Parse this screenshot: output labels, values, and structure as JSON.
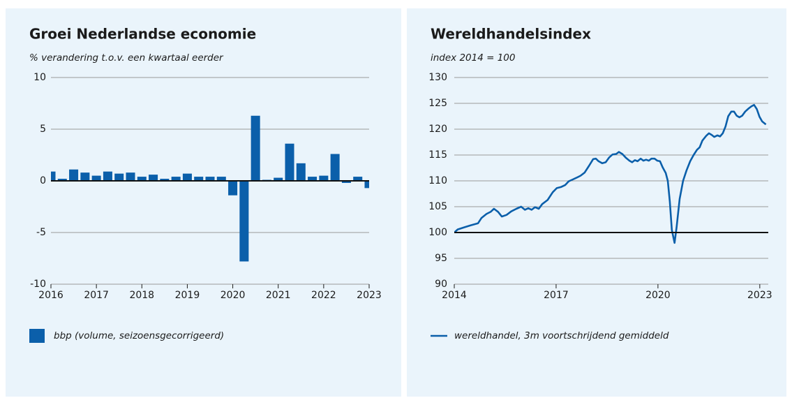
{
  "chart_data": [
    {
      "type": "bar",
      "title": "Groei Nederlandse economie",
      "subtitle": "% verandering t.o.v. een kwartaal eerder",
      "x": [
        2016,
        2016.25,
        2016.5,
        2016.75,
        2017,
        2017.25,
        2017.5,
        2017.75,
        2018,
        2018.25,
        2018.5,
        2018.75,
        2019,
        2019.25,
        2019.5,
        2019.75,
        2020,
        2020.25,
        2020.5,
        2020.75,
        2021,
        2021.25,
        2021.5,
        2021.75,
        2022,
        2022.25,
        2022.5,
        2022.75,
        2023
      ],
      "series": [
        {
          "name": "bbp (volume, seizoensgecorrigeerd)",
          "color": "#0b5faa",
          "values": [
            0.9,
            0.2,
            1.1,
            0.8,
            0.5,
            0.9,
            0.7,
            0.8,
            0.4,
            0.6,
            0.2,
            0.4,
            0.7,
            0.4,
            0.4,
            0.4,
            -1.4,
            -7.8,
            6.3,
            0.1,
            0.3,
            3.6,
            1.7,
            0.4,
            0.5,
            2.6,
            -0.2,
            0.4,
            -0.7
          ]
        }
      ],
      "xlim": [
        2016,
        2023
      ],
      "xticks": [
        2016,
        2017,
        2018,
        2019,
        2020,
        2021,
        2022,
        2023
      ],
      "ylim": [
        -10,
        10
      ],
      "yticks": [
        -10,
        -5,
        0,
        5,
        10
      ],
      "grid": true,
      "hline": 0
    },
    {
      "type": "line",
      "title": "Wereldhandelsindex",
      "subtitle": "index 2014 = 100",
      "x": [
        2014.0,
        2014.1,
        2014.29,
        2014.49,
        2014.7,
        2014.8,
        2014.95,
        2015.07,
        2015.17,
        2015.29,
        2015.4,
        2015.54,
        2015.68,
        2015.83,
        2015.97,
        2016.08,
        2016.18,
        2016.28,
        2016.38,
        2016.49,
        2016.59,
        2016.75,
        2016.9,
        2017.02,
        2017.14,
        2017.27,
        2017.37,
        2017.47,
        2017.6,
        2017.72,
        2017.84,
        2017.97,
        2018.09,
        2018.17,
        2018.25,
        2018.36,
        2018.46,
        2018.56,
        2018.66,
        2018.77,
        2018.85,
        2018.95,
        2019.05,
        2019.16,
        2019.24,
        2019.32,
        2019.4,
        2019.49,
        2019.57,
        2019.65,
        2019.73,
        2019.81,
        2019.9,
        2019.98,
        2020.06,
        2020.14,
        2020.23,
        2020.29,
        2020.35,
        2020.41,
        2020.49,
        2020.55,
        2020.64,
        2020.74,
        2020.84,
        2020.95,
        2021.05,
        2021.15,
        2021.23,
        2021.31,
        2021.42,
        2021.5,
        2021.58,
        2021.66,
        2021.75,
        2021.83,
        2021.91,
        2021.99,
        2022.07,
        2022.16,
        2022.24,
        2022.32,
        2022.4,
        2022.48,
        2022.57,
        2022.67,
        2022.75,
        2022.83,
        2022.91,
        2022.99,
        2023.07,
        2023.18
      ],
      "series": [
        {
          "name": "wereldhandel, 3m voortschrijdend gemiddeld",
          "color": "#0b5faa",
          "values": [
            100.0,
            100.6,
            101.0,
            101.4,
            101.8,
            102.8,
            103.6,
            104.0,
            104.6,
            104.0,
            103.1,
            103.4,
            104.1,
            104.6,
            105.0,
            104.4,
            104.7,
            104.4,
            104.9,
            104.6,
            105.5,
            106.3,
            107.8,
            108.6,
            108.8,
            109.2,
            109.9,
            110.2,
            110.6,
            111.0,
            111.6,
            112.9,
            114.2,
            114.3,
            113.8,
            113.4,
            113.6,
            114.5,
            115.1,
            115.2,
            115.6,
            115.2,
            114.5,
            113.9,
            113.6,
            114.0,
            113.8,
            114.3,
            113.9,
            114.1,
            113.9,
            114.3,
            114.3,
            113.9,
            113.8,
            112.6,
            111.5,
            110.0,
            106.0,
            100.5,
            98.0,
            101.0,
            106.5,
            110.0,
            112.0,
            113.8,
            115.0,
            116.0,
            116.5,
            117.8,
            118.7,
            119.2,
            118.9,
            118.5,
            118.8,
            118.6,
            119.2,
            120.5,
            122.5,
            123.4,
            123.4,
            122.6,
            122.3,
            122.6,
            123.4,
            124.0,
            124.4,
            124.7,
            123.9,
            122.4,
            121.5,
            120.9
          ]
        }
      ],
      "xlim": [
        2014,
        2023.25
      ],
      "xticks": [
        2014,
        2017,
        2020,
        2023
      ],
      "ylim": [
        90,
        130
      ],
      "yticks": [
        90,
        95,
        100,
        105,
        110,
        115,
        120,
        125,
        130
      ],
      "grid": true,
      "hline": 100
    }
  ]
}
